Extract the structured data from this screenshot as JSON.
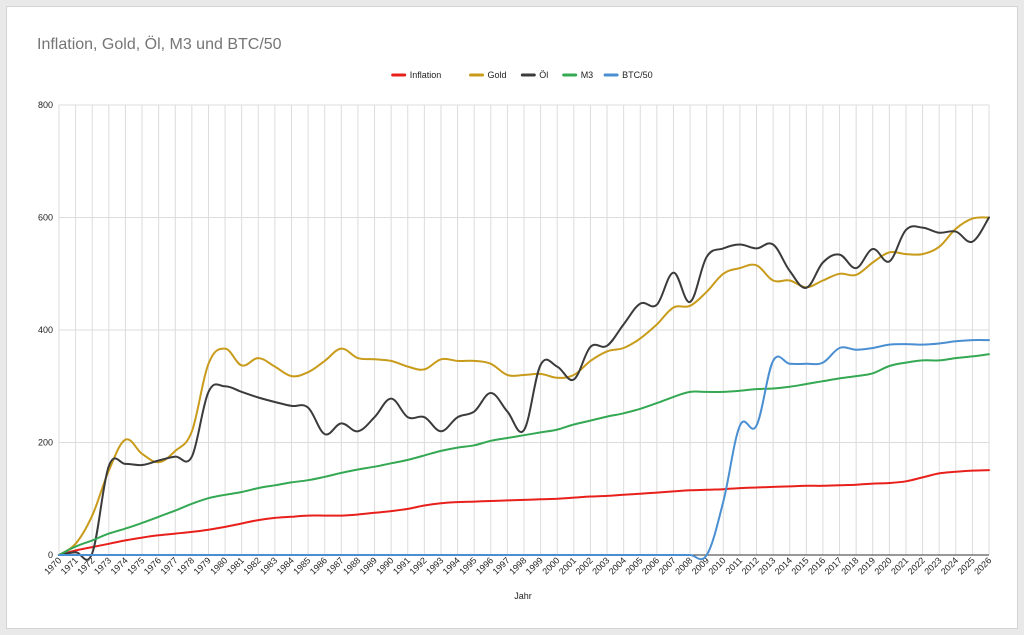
{
  "chart_data": {
    "type": "line",
    "title": "Inflation, Gold, Öl, M3 und BTC/50",
    "xlabel": "Jahr",
    "ylabel": "",
    "ylim": [
      0,
      800
    ],
    "yticks": [
      0,
      200,
      400,
      600,
      800
    ],
    "grid": true,
    "legend_position": "top",
    "x": [
      "1970",
      "1971",
      "1972",
      "1973",
      "1974",
      "1975",
      "1976",
      "1977",
      "1978",
      "1979",
      "1980",
      "1981",
      "1982",
      "1983",
      "1984",
      "1985",
      "1986",
      "1987",
      "1988",
      "1989",
      "1990",
      "1991",
      "1992",
      "1993",
      "1994",
      "1995",
      "1996",
      "1997",
      "1998",
      "1999",
      "2000",
      "2001",
      "2002",
      "2003",
      "2004",
      "2005",
      "2006",
      "2007",
      "2008",
      "2009",
      "2010",
      "2011",
      "2012",
      "2013",
      "2014",
      "2015",
      "2016",
      "2017",
      "2018",
      "2019",
      "2020",
      "2021",
      "2022",
      "2023",
      "2024",
      "2025",
      "2026"
    ],
    "series": [
      {
        "name": "Inflation",
        "color": "#e8201b",
        "values": [
          0,
          8,
          14,
          20,
          26,
          31,
          35,
          38,
          41,
          45,
          50,
          56,
          62,
          66,
          68,
          70,
          70,
          70,
          72,
          75,
          78,
          82,
          88,
          92,
          94,
          95,
          96,
          97,
          98,
          99,
          100,
          102,
          104,
          105,
          107,
          109,
          111,
          113,
          115,
          116,
          117,
          119,
          120,
          121,
          122,
          123,
          123,
          124,
          125,
          127,
          128,
          131,
          138,
          145,
          148,
          150,
          151
        ]
      },
      {
        "name": "Gold",
        "color": "#c99b1a",
        "values": [
          0,
          20,
          70,
          150,
          205,
          180,
          165,
          185,
          220,
          340,
          367,
          337,
          350,
          335,
          318,
          325,
          345,
          367,
          350,
          348,
          345,
          335,
          330,
          348,
          345,
          345,
          340,
          320,
          320,
          322,
          315,
          320,
          345,
          362,
          368,
          385,
          410,
          440,
          443,
          468,
          500,
          510,
          515,
          488,
          488,
          476,
          488,
          500,
          498,
          520,
          538,
          535,
          535,
          548,
          580,
          598,
          600
        ]
      },
      {
        "name": "Öl",
        "color": "#3b3b3b",
        "values": [
          0,
          5,
          3,
          158,
          162,
          160,
          168,
          175,
          175,
          290,
          300,
          290,
          280,
          272,
          265,
          262,
          215,
          234,
          220,
          245,
          278,
          245,
          245,
          220,
          245,
          255,
          288,
          255,
          222,
          338,
          335,
          312,
          370,
          372,
          410,
          447,
          445,
          502,
          450,
          530,
          545,
          552,
          545,
          552,
          505,
          475,
          520,
          534,
          510,
          544,
          522,
          578,
          582,
          573,
          575,
          557,
          600
        ]
      },
      {
        "name": "M3",
        "color": "#34a853",
        "values": [
          0,
          15,
          26,
          38,
          47,
          57,
          68,
          79,
          91,
          101,
          107,
          112,
          119,
          124,
          129,
          133,
          139,
          146,
          152,
          157,
          163,
          169,
          177,
          185,
          191,
          195,
          203,
          208,
          213,
          218,
          223,
          232,
          239,
          246,
          252,
          260,
          270,
          281,
          290,
          290,
          290,
          292,
          295,
          296,
          299,
          304,
          309,
          314,
          318,
          323,
          336,
          342,
          346,
          346,
          350,
          353,
          357
        ]
      },
      {
        "name": "BTC/50",
        "color": "#4a8fd2",
        "values": [
          0,
          0,
          0,
          0,
          0,
          0,
          0,
          0,
          0,
          0,
          0,
          0,
          0,
          0,
          0,
          0,
          0,
          0,
          0,
          0,
          0,
          0,
          0,
          0,
          0,
          0,
          0,
          0,
          0,
          0,
          0,
          0,
          0,
          0,
          0,
          0,
          0,
          0,
          0,
          0,
          95,
          230,
          230,
          345,
          340,
          340,
          342,
          368,
          365,
          368,
          374,
          375,
          374,
          376,
          380,
          382,
          382
        ]
      }
    ]
  }
}
